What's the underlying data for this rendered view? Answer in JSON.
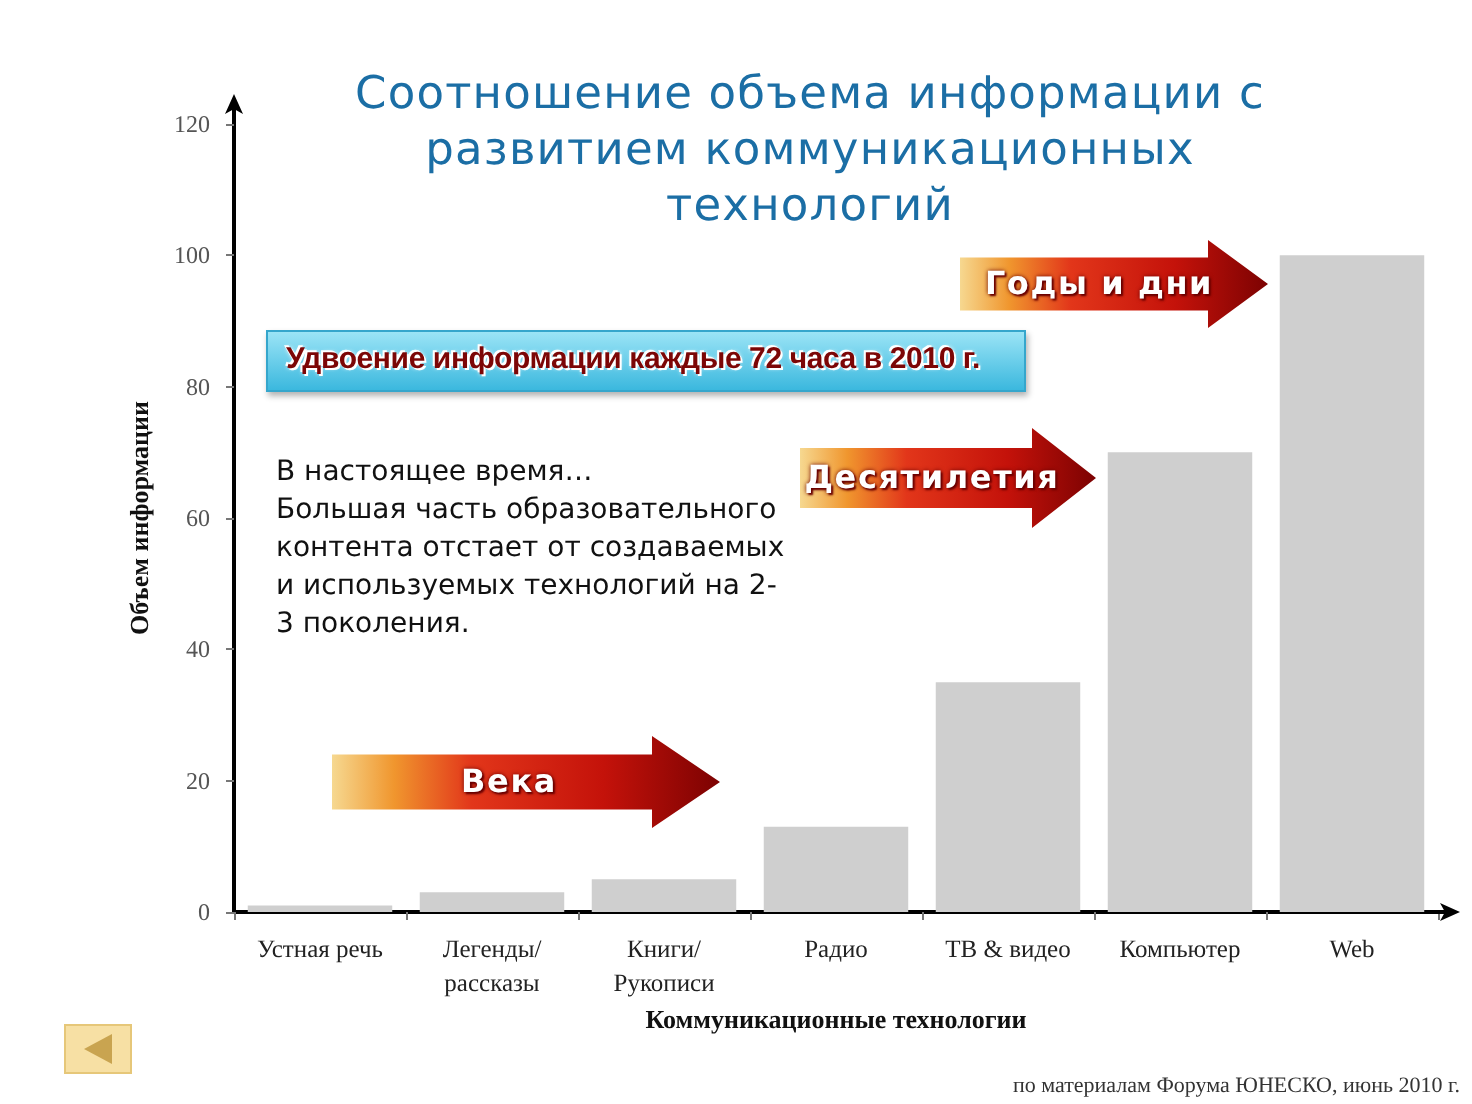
{
  "chart_data": {
    "type": "bar",
    "title": "Соотношение объема информации с развитием коммуникационных технологий",
    "xlabel": "Коммуникационные технологии",
    "ylabel": "Объем информации",
    "categories": [
      "Устная речь",
      "Легенды/ рассказы",
      "Книги/ Рукописи",
      "Радио",
      "ТВ & видео",
      "Компьютер",
      "Web"
    ],
    "values": [
      1,
      3,
      5,
      13,
      35,
      70,
      100
    ],
    "color": "#cfcfcf",
    "ylim": [
      0,
      120
    ],
    "yticks": [
      0,
      20,
      40,
      60,
      80,
      100,
      120
    ],
    "grid": false,
    "annotations": [
      "Удвоение информации каждые 72 часа в 2010 г.",
      "В настоящее время…\nБольшая часть образовательного контента отстает от создаваемых и используемых технологий на 2-3 поколения.",
      "Века",
      "Десятилетия",
      "Годы и дни",
      "по материалам Форума ЮНЕСКО, июнь 2010 г."
    ]
  }
}
